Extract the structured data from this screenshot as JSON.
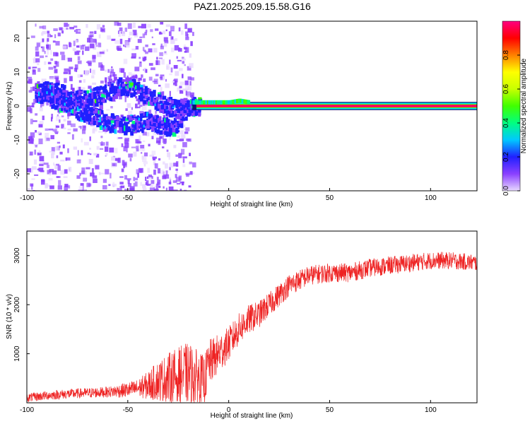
{
  "title": "PAZ1.2025.209.15.58.G16",
  "chart_data": [
    {
      "type": "heatmap",
      "xlabel": "Height of straight line (km)",
      "ylabel": "Frequency (Hz)",
      "xlim": [
        -100,
        123
      ],
      "ylim": [
        -25,
        25
      ],
      "xticks": [
        -100,
        -50,
        0,
        50,
        100
      ],
      "yticks": [
        -20,
        -10,
        0,
        10,
        20
      ],
      "colorbar": {
        "label": "Normalized spectral amplitude",
        "range": [
          0,
          1
        ],
        "ticks": [
          "0.0",
          "0.2",
          "0.4",
          "0.6",
          "0.8"
        ],
        "colors": [
          "#e8d8ff",
          "#8a40ff",
          "#2020ff",
          "#00c8ff",
          "#00ff80",
          "#40ff00",
          "#c8ff00",
          "#ffff00",
          "#ff8000",
          "#ff0000",
          "#ff0080"
        ]
      },
      "ridge": {
        "x": [
          -92,
          -85,
          -78,
          -70,
          -62,
          -55,
          -48,
          -42,
          -35,
          -28,
          -22,
          -18,
          -12,
          -5,
          0,
          5,
          10,
          20,
          40,
          60,
          80,
          100,
          123
        ],
        "upper_branch": [
          5,
          4.5,
          3,
          2.5,
          4,
          6,
          6,
          4,
          1.5,
          0,
          0,
          0.5,
          0.5,
          0.5,
          0.5,
          1,
          0.5,
          0,
          0,
          0,
          0,
          0,
          0
        ],
        "lower_branch": [
          4,
          2,
          0,
          -2,
          -4,
          -5,
          -5,
          -4,
          -5,
          -6,
          -1,
          0,
          0.5,
          0.5,
          0.5,
          1,
          0.5,
          0,
          0,
          0,
          0,
          0,
          0
        ]
      }
    },
    {
      "type": "line",
      "xlabel": "Height of straight line (km)",
      "ylabel": "SNR (10 * v/v)",
      "xlim": [
        -100,
        123
      ],
      "ylim": [
        0,
        3500
      ],
      "xticks": [
        -100,
        -50,
        0,
        50,
        100
      ],
      "yticks": [
        1000,
        2000,
        3000
      ],
      "color": "#ee2222",
      "trend": {
        "x": [
          -100,
          -90,
          -80,
          -70,
          -60,
          -50,
          -45,
          -40,
          -35,
          -30,
          -25,
          -20,
          -15,
          -12,
          -10,
          -5,
          0,
          5,
          10,
          15,
          20,
          25,
          30,
          40,
          50,
          60,
          70,
          80,
          90,
          100,
          110,
          123
        ],
        "y": [
          100,
          150,
          180,
          200,
          220,
          260,
          300,
          350,
          450,
          500,
          550,
          600,
          500,
          450,
          800,
          1000,
          1200,
          1500,
          1700,
          1800,
          2000,
          2200,
          2400,
          2600,
          2650,
          2650,
          2750,
          2800,
          2850,
          2900,
          2900,
          2850
        ]
      },
      "spread": {
        "x": [
          -100,
          -60,
          -45,
          -30,
          -20,
          -12,
          0,
          20,
          40,
          123
        ],
        "y": [
          90,
          110,
          180,
          520,
          650,
          500,
          350,
          250,
          200,
          170
        ]
      }
    }
  ]
}
